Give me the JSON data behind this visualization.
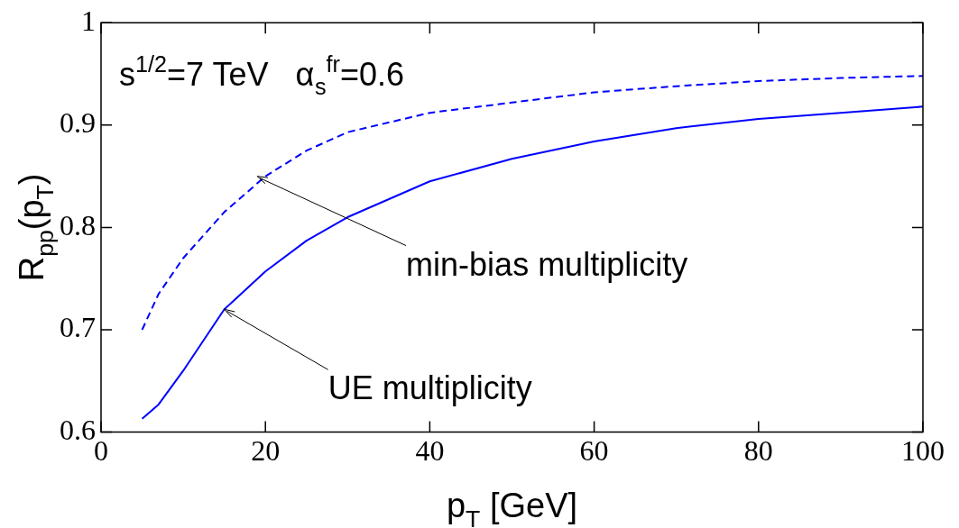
{
  "chart_data": {
    "type": "line",
    "xlabel": "p$_{T}$ [GeV]",
    "ylabel": "R$_{pp}$(p$_{T}$)",
    "xlim": [
      0,
      100
    ],
    "xticks": [
      0,
      20,
      40,
      60,
      80,
      100
    ],
    "ylim": [
      0.6,
      1
    ],
    "yticks": [
      0.6,
      0.7,
      0.8,
      0.9,
      1
    ],
    "grid": false,
    "legend": false,
    "marker": "none",
    "series": [
      {
        "color": "#0000ff",
        "line_style": "dashed",
        "x": [
          5,
          7,
          10,
          15,
          20,
          25,
          30,
          40,
          50,
          60,
          70,
          80,
          90,
          100
        ],
        "values": [
          0.7,
          0.735,
          0.77,
          0.815,
          0.85,
          0.875,
          0.893,
          0.912,
          0.922,
          0.932,
          0.938,
          0.943,
          0.946,
          0.948
        ]
      },
      {
        "color": "#0000ff",
        "line_style": "solid",
        "x": [
          5,
          7,
          10,
          15,
          20,
          25,
          30,
          40,
          50,
          60,
          70,
          80,
          90,
          100
        ],
        "values": [
          0.613,
          0.627,
          0.66,
          0.72,
          0.757,
          0.787,
          0.81,
          0.845,
          0.867,
          0.884,
          0.897,
          0.906,
          0.912,
          0.918
        ]
      }
    ],
    "annotations": [
      "s$^{1/2}$=7 TeV   α$_{s}$$^{fr}$=0.6",
      {
        "text": "min-bias multiplicity",
        "x": 19,
        "y": 0.85
      },
      {
        "text": "UE multiplicity",
        "x": 15,
        "y": 0.72
      }
    ]
  }
}
